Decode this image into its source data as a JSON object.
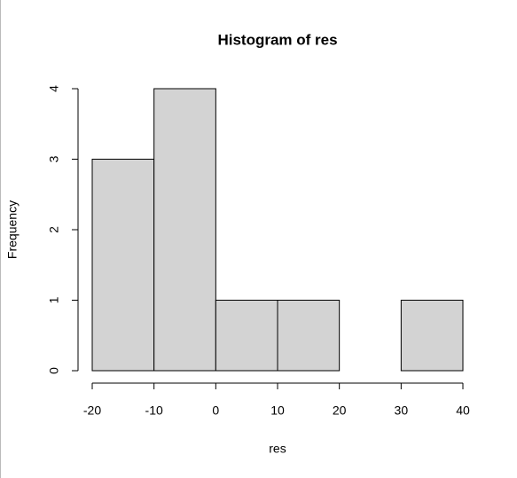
{
  "chart_data": {
    "type": "histogram",
    "title": "Histogram of res",
    "x_label": "res",
    "y_label": "Frequency",
    "bins": [
      -20,
      -10,
      0,
      10,
      20,
      30,
      40
    ],
    "values": [
      3,
      4,
      1,
      1,
      0,
      1
    ],
    "color": "#d3d3d3",
    "xlim": [
      -20,
      40
    ],
    "xticks": [
      -20,
      -10,
      0,
      10,
      20,
      30,
      40
    ],
    "ylim": [
      0,
      4
    ],
    "yticks": [
      0,
      1,
      2,
      3,
      4
    ]
  }
}
